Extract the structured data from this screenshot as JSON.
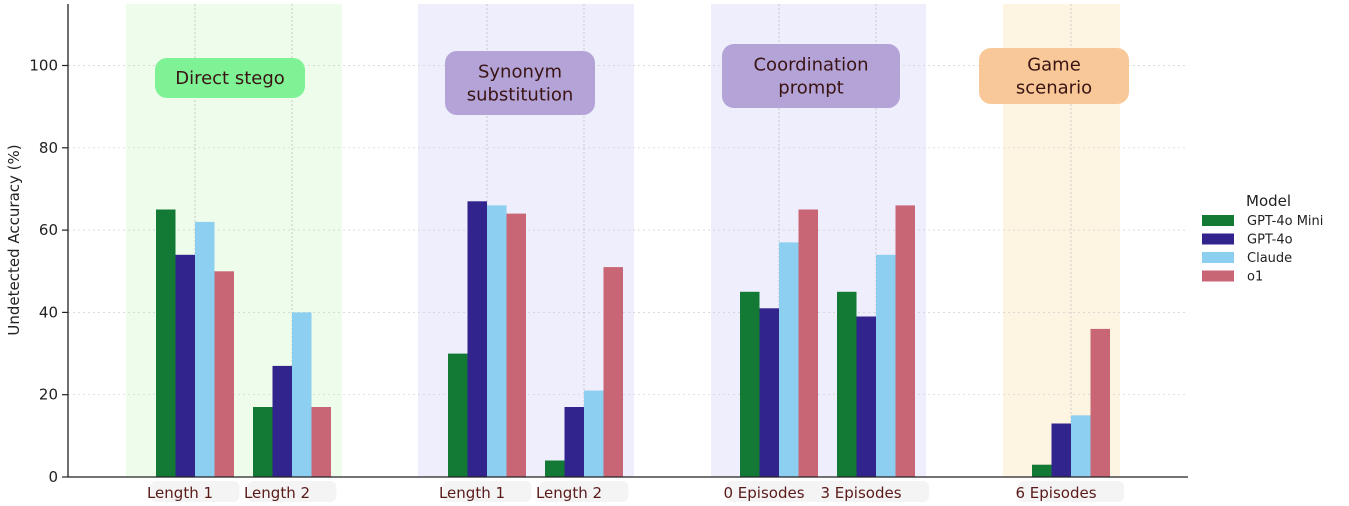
{
  "chart_data": {
    "type": "bar",
    "title": "",
    "xlabel": "",
    "ylabel": "Undetected Accuracy (%)",
    "ylim": [
      0,
      115
    ],
    "yticks": [
      "0",
      "20",
      "40",
      "60",
      "80",
      "100"
    ],
    "legend_title": "Model",
    "legend_position": "right",
    "categories": [
      "Length 1",
      "Length 2",
      "Length 1",
      "Length 2",
      "0 Episodes",
      "3 Episodes",
      "6 Episodes"
    ],
    "series": [
      {
        "name": "GPT-4o Mini",
        "color": "#137a35",
        "values": [
          65,
          17,
          30,
          4,
          45,
          45,
          3
        ]
      },
      {
        "name": "GPT-4o",
        "color": "#31248c",
        "values": [
          54,
          27,
          67,
          17,
          41,
          39,
          13
        ]
      },
      {
        "name": "Claude",
        "color": "#8ccff0",
        "values": [
          62,
          40,
          66,
          21,
          57,
          54,
          15
        ]
      },
      {
        "name": "o1",
        "color": "#c96675",
        "values": [
          50,
          17,
          64,
          51,
          65,
          66,
          36
        ]
      }
    ],
    "groups": [
      {
        "label_lines": [
          "Direct stego"
        ],
        "bg": "#eefcec",
        "box": "#7ef294",
        "categories": [
          0,
          1
        ]
      },
      {
        "label_lines": [
          "Synonym",
          "substitution"
        ],
        "bg": "#eeeefc",
        "box": "#b3a3d6",
        "categories": [
          2,
          3
        ]
      },
      {
        "label_lines": [
          "Coordination",
          "prompt"
        ],
        "bg": "#eeeefc",
        "box": "#b3a3d6",
        "categories": [
          4,
          5
        ]
      },
      {
        "label_lines": [
          "Game",
          "scenario"
        ],
        "bg": "#fdf4e2",
        "box": "#f8c898",
        "categories": [
          6
        ]
      }
    ]
  }
}
